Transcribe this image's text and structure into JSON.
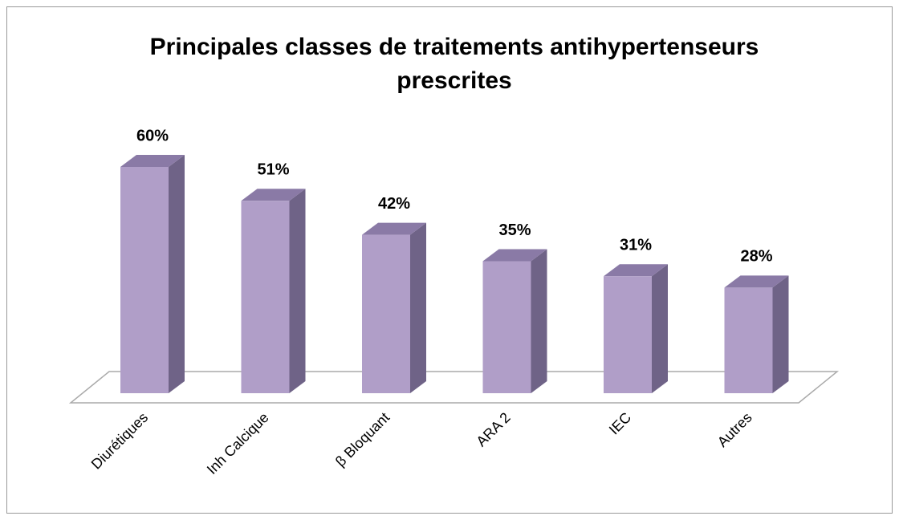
{
  "chart_data": {
    "type": "bar3d",
    "title": [
      "Principales classes de traitements antihypertenseurs",
      "prescrites"
    ],
    "categories": [
      "Diurétiques",
      "Inh Calcique",
      "β Bloquant",
      "ARA 2",
      "IEC",
      "Autres"
    ],
    "values": [
      60,
      51,
      42,
      35,
      31,
      28
    ],
    "value_labels": [
      "60%",
      "51%",
      "42%",
      "35%",
      "31%",
      "28%"
    ],
    "color": "#b09ec8"
  }
}
